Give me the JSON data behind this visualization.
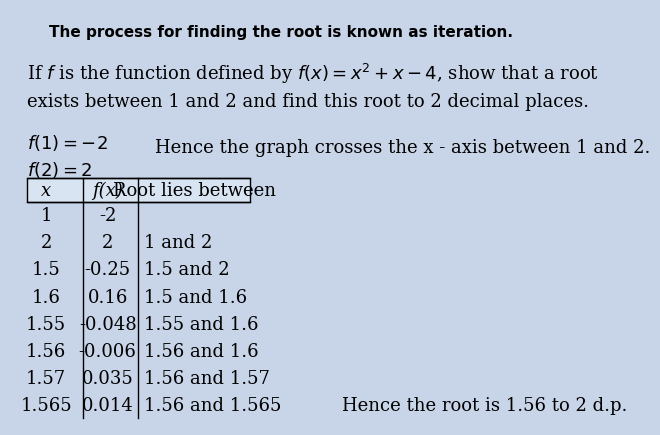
{
  "background_color": "#c8d4e8",
  "title": "The process for finding the root is known as iteration.",
  "title_fontsize": 11,
  "problem_line1": "If $f$ is the function defined by $f(x) = x^2 + x - 4$, show that a root",
  "problem_line2": "exists between 1 and 2 and find this root to 2 decimal places.",
  "f1_text": "$f(1) = -2$",
  "f2_text": "$f(2) = 2$",
  "hence_text": "Hence the graph crosses the x - axis between 1 and 2.",
  "col_headers": [
    "x",
    "f(x)",
    "Root lies between"
  ],
  "table_data": [
    [
      "1",
      "-2",
      ""
    ],
    [
      "2",
      "2",
      "1 and 2"
    ],
    [
      "1.5",
      "-0.25",
      "1.5 and 2"
    ],
    [
      "1.6",
      "0.16",
      "1.5 and 1.6"
    ],
    [
      "1.55",
      "-0.048",
      "1.55 and 1.6"
    ],
    [
      "1.56",
      "-0.006",
      "1.56 and 1.6"
    ],
    [
      "1.57",
      "0.035",
      "1.56 and 1.57"
    ],
    [
      "1.565",
      "0.014",
      "1.56 and 1.565"
    ]
  ],
  "conclusion": "Hence the root is 1.56 to 2 d.p.",
  "main_fontsize": 13,
  "table_fontsize": 13
}
